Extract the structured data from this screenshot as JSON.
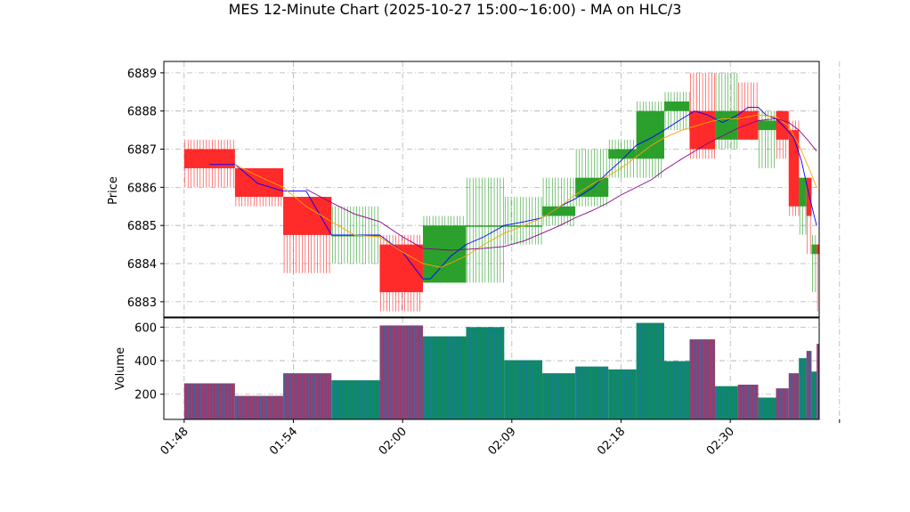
{
  "chart_data": {
    "type": "candlestick",
    "title": "MES 12-Minute Chart (2025-10-27 15:00~16:00) - MA on HLC/3",
    "price_panel": {
      "ylabel": "Price",
      "ylim": [
        6882.6,
        6889.3
      ],
      "yticks": [
        6883,
        6884,
        6885,
        6886,
        6887,
        6888,
        6889
      ]
    },
    "volume_panel": {
      "ylabel": "Volume",
      "ylim": [
        50,
        655
      ],
      "yticks": [
        200,
        400,
        600
      ]
    },
    "x_axis": {
      "xlim": [
        -8,
        250
      ],
      "ticks": [
        {
          "x": 0,
          "label": "01:48"
        },
        {
          "x": 43,
          "label": "01:54"
        },
        {
          "x": 86,
          "label": "02:00"
        },
        {
          "x": 129,
          "label": "02:09"
        },
        {
          "x": 172,
          "label": "02:18"
        },
        {
          "x": 215,
          "label": "02:30"
        },
        {
          "x": 258,
          "label": ""
        }
      ]
    },
    "grid": true,
    "colors": {
      "up": "#2ca02c",
      "down": "#ff2a2a",
      "ma_fast": "#0000ff",
      "ma_mid": "#ffa500",
      "ma_slow": "#8b008b",
      "volume_face": "#9b3a6b",
      "volume_edge": "#1f77b4",
      "volume_up_face": "#0e8a5f"
    },
    "candles": [
      {
        "x0": 0,
        "x1": 20,
        "open": 6887.0,
        "high": 6887.25,
        "low": 6886.0,
        "close": 6886.5,
        "volume": 265
      },
      {
        "x0": 20,
        "x1": 39,
        "open": 6886.5,
        "high": 6886.5,
        "low": 6885.5,
        "close": 6885.75,
        "volume": 190
      },
      {
        "x0": 39,
        "x1": 58,
        "open": 6885.75,
        "high": 6885.75,
        "low": 6883.75,
        "close": 6884.75,
        "volume": 325
      },
      {
        "x0": 58,
        "x1": 77,
        "open": 6884.75,
        "high": 6885.5,
        "low": 6884.0,
        "close": 6884.75,
        "volume": 283
      },
      {
        "x0": 77,
        "x1": 94,
        "open": 6884.5,
        "high": 6884.75,
        "low": 6882.75,
        "close": 6883.25,
        "volume": 610
      },
      {
        "x0": 94,
        "x1": 111,
        "open": 6883.5,
        "high": 6885.25,
        "low": 6883.5,
        "close": 6885.0,
        "volume": 545
      },
      {
        "x0": 111,
        "x1": 126,
        "open": 6885.0,
        "high": 6886.25,
        "low": 6883.5,
        "close": 6885.0,
        "volume": 600
      },
      {
        "x0": 126,
        "x1": 141,
        "open": 6885.0,
        "high": 6885.75,
        "low": 6884.5,
        "close": 6885.0,
        "volume": 403
      },
      {
        "x0": 141,
        "x1": 154,
        "open": 6885.25,
        "high": 6886.25,
        "low": 6885.0,
        "close": 6885.5,
        "volume": 325
      },
      {
        "x0": 154,
        "x1": 167,
        "open": 6885.75,
        "high": 6887.0,
        "low": 6885.5,
        "close": 6886.25,
        "volume": 365
      },
      {
        "x0": 167,
        "x1": 178,
        "open": 6886.75,
        "high": 6887.25,
        "low": 6886.25,
        "close": 6887.0,
        "volume": 348
      },
      {
        "x0": 178,
        "x1": 189,
        "open": 6886.75,
        "high": 6888.25,
        "low": 6886.25,
        "close": 6888.0,
        "volume": 625
      },
      {
        "x0": 189,
        "x1": 199,
        "open": 6888.0,
        "high": 6888.5,
        "low": 6887.5,
        "close": 6888.25,
        "volume": 397
      },
      {
        "x0": 199,
        "x1": 209,
        "open": 6888.0,
        "high": 6889.0,
        "low": 6886.75,
        "close": 6887.0,
        "volume": 527
      },
      {
        "x0": 209,
        "x1": 218,
        "open": 6887.25,
        "high": 6889.0,
        "low": 6887.0,
        "close": 6888.0,
        "volume": 248
      },
      {
        "x0": 218,
        "x1": 226,
        "open": 6888.0,
        "high": 6888.75,
        "low": 6887.25,
        "close": 6887.25,
        "volume": 257
      },
      {
        "x0": 226,
        "x1": 233,
        "open": 6887.5,
        "high": 6888.0,
        "low": 6886.5,
        "close": 6887.75,
        "volume": 180
      },
      {
        "x0": 233,
        "x1": 238,
        "open": 6888.0,
        "high": 6888.0,
        "low": 6886.75,
        "close": 6887.25,
        "volume": 235
      },
      {
        "x0": 238,
        "x1": 242,
        "open": 6887.5,
        "high": 6887.75,
        "low": 6885.25,
        "close": 6885.5,
        "volume": 325
      },
      {
        "x0": 242,
        "x1": 245,
        "open": 6885.5,
        "high": 6886.25,
        "low": 6884.75,
        "close": 6886.25,
        "volume": 415
      },
      {
        "x0": 245,
        "x1": 247,
        "open": 6886.25,
        "high": 6886.25,
        "low": 6884.25,
        "close": 6885.25,
        "volume": 458
      },
      {
        "x0": 247,
        "x1": 249,
        "open": 6884.25,
        "high": 6884.75,
        "low": 6883.25,
        "close": 6884.5,
        "volume": 335
      },
      {
        "x0": 249,
        "x1": 250,
        "open": 6884.5,
        "high": 6884.5,
        "low": 6882.75,
        "close": 6884.25,
        "volume": 500
      }
    ],
    "ma_series": [
      {
        "color": "#0000ff",
        "points": [
          [
            10,
            6886.6
          ],
          [
            20,
            6886.6
          ],
          [
            29,
            6886.1
          ],
          [
            39,
            6885.9
          ],
          [
            48,
            6885.9
          ],
          [
            58,
            6884.75
          ],
          [
            67,
            6884.75
          ],
          [
            77,
            6884.75
          ],
          [
            86,
            6884.3
          ],
          [
            94,
            6883.6
          ],
          [
            97,
            6883.6
          ],
          [
            105,
            6884.2
          ],
          [
            111,
            6884.5
          ],
          [
            118,
            6884.7
          ],
          [
            126,
            6885.0
          ],
          [
            134,
            6885.1
          ],
          [
            141,
            6885.2
          ],
          [
            148,
            6885.5
          ],
          [
            154,
            6885.7
          ],
          [
            161,
            6886.0
          ],
          [
            167,
            6886.4
          ],
          [
            172,
            6886.7
          ],
          [
            178,
            6887.1
          ],
          [
            184,
            6887.3
          ],
          [
            189,
            6887.5
          ],
          [
            196,
            6887.8
          ],
          [
            201,
            6888.0
          ],
          [
            206,
            6887.9
          ],
          [
            212,
            6887.7
          ],
          [
            218,
            6887.9
          ],
          [
            222,
            6888.1
          ],
          [
            226,
            6888.1
          ],
          [
            229,
            6887.9
          ],
          [
            233,
            6887.8
          ],
          [
            236,
            6887.6
          ],
          [
            240,
            6887.3
          ],
          [
            243,
            6886.7
          ],
          [
            246,
            6885.8
          ],
          [
            249,
            6885.0
          ]
        ]
      },
      {
        "color": "#ffa500",
        "points": [
          [
            20,
            6886.6
          ],
          [
            29,
            6886.3
          ],
          [
            39,
            6886.0
          ],
          [
            48,
            6885.5
          ],
          [
            58,
            6885.1
          ],
          [
            67,
            6884.75
          ],
          [
            77,
            6884.7
          ],
          [
            86,
            6884.3
          ],
          [
            94,
            6884.0
          ],
          [
            101,
            6883.9
          ],
          [
            111,
            6884.2
          ],
          [
            118,
            6884.5
          ],
          [
            126,
            6884.8
          ],
          [
            134,
            6885.0
          ],
          [
            141,
            6885.2
          ],
          [
            148,
            6885.5
          ],
          [
            154,
            6885.8
          ],
          [
            161,
            6886.1
          ],
          [
            167,
            6886.3
          ],
          [
            172,
            6886.5
          ],
          [
            178,
            6886.8
          ],
          [
            184,
            6887.1
          ],
          [
            189,
            6887.3
          ],
          [
            196,
            6887.5
          ],
          [
            201,
            6887.6
          ],
          [
            206,
            6887.7
          ],
          [
            212,
            6887.8
          ],
          [
            218,
            6887.8
          ],
          [
            226,
            6887.9
          ],
          [
            233,
            6887.85
          ],
          [
            238,
            6887.6
          ],
          [
            242,
            6887.1
          ],
          [
            246,
            6886.5
          ],
          [
            249,
            6886.0
          ]
        ]
      },
      {
        "color": "#8b008b",
        "points": [
          [
            48,
            6885.95
          ],
          [
            58,
            6885.6
          ],
          [
            67,
            6885.3
          ],
          [
            77,
            6885.1
          ],
          [
            86,
            6884.7
          ],
          [
            94,
            6884.4
          ],
          [
            105,
            6884.35
          ],
          [
            118,
            6884.4
          ],
          [
            126,
            6884.45
          ],
          [
            134,
            6884.6
          ],
          [
            141,
            6884.8
          ],
          [
            148,
            6885.0
          ],
          [
            154,
            6885.2
          ],
          [
            161,
            6885.4
          ],
          [
            167,
            6885.6
          ],
          [
            172,
            6885.8
          ],
          [
            178,
            6886.0
          ],
          [
            184,
            6886.2
          ],
          [
            189,
            6886.45
          ],
          [
            196,
            6886.75
          ],
          [
            201,
            6886.95
          ],
          [
            206,
            6887.15
          ],
          [
            212,
            6887.35
          ],
          [
            218,
            6887.55
          ],
          [
            226,
            6887.75
          ],
          [
            233,
            6887.8
          ],
          [
            238,
            6887.7
          ],
          [
            242,
            6887.5
          ],
          [
            246,
            6887.2
          ],
          [
            249,
            6886.95
          ]
        ]
      }
    ]
  }
}
